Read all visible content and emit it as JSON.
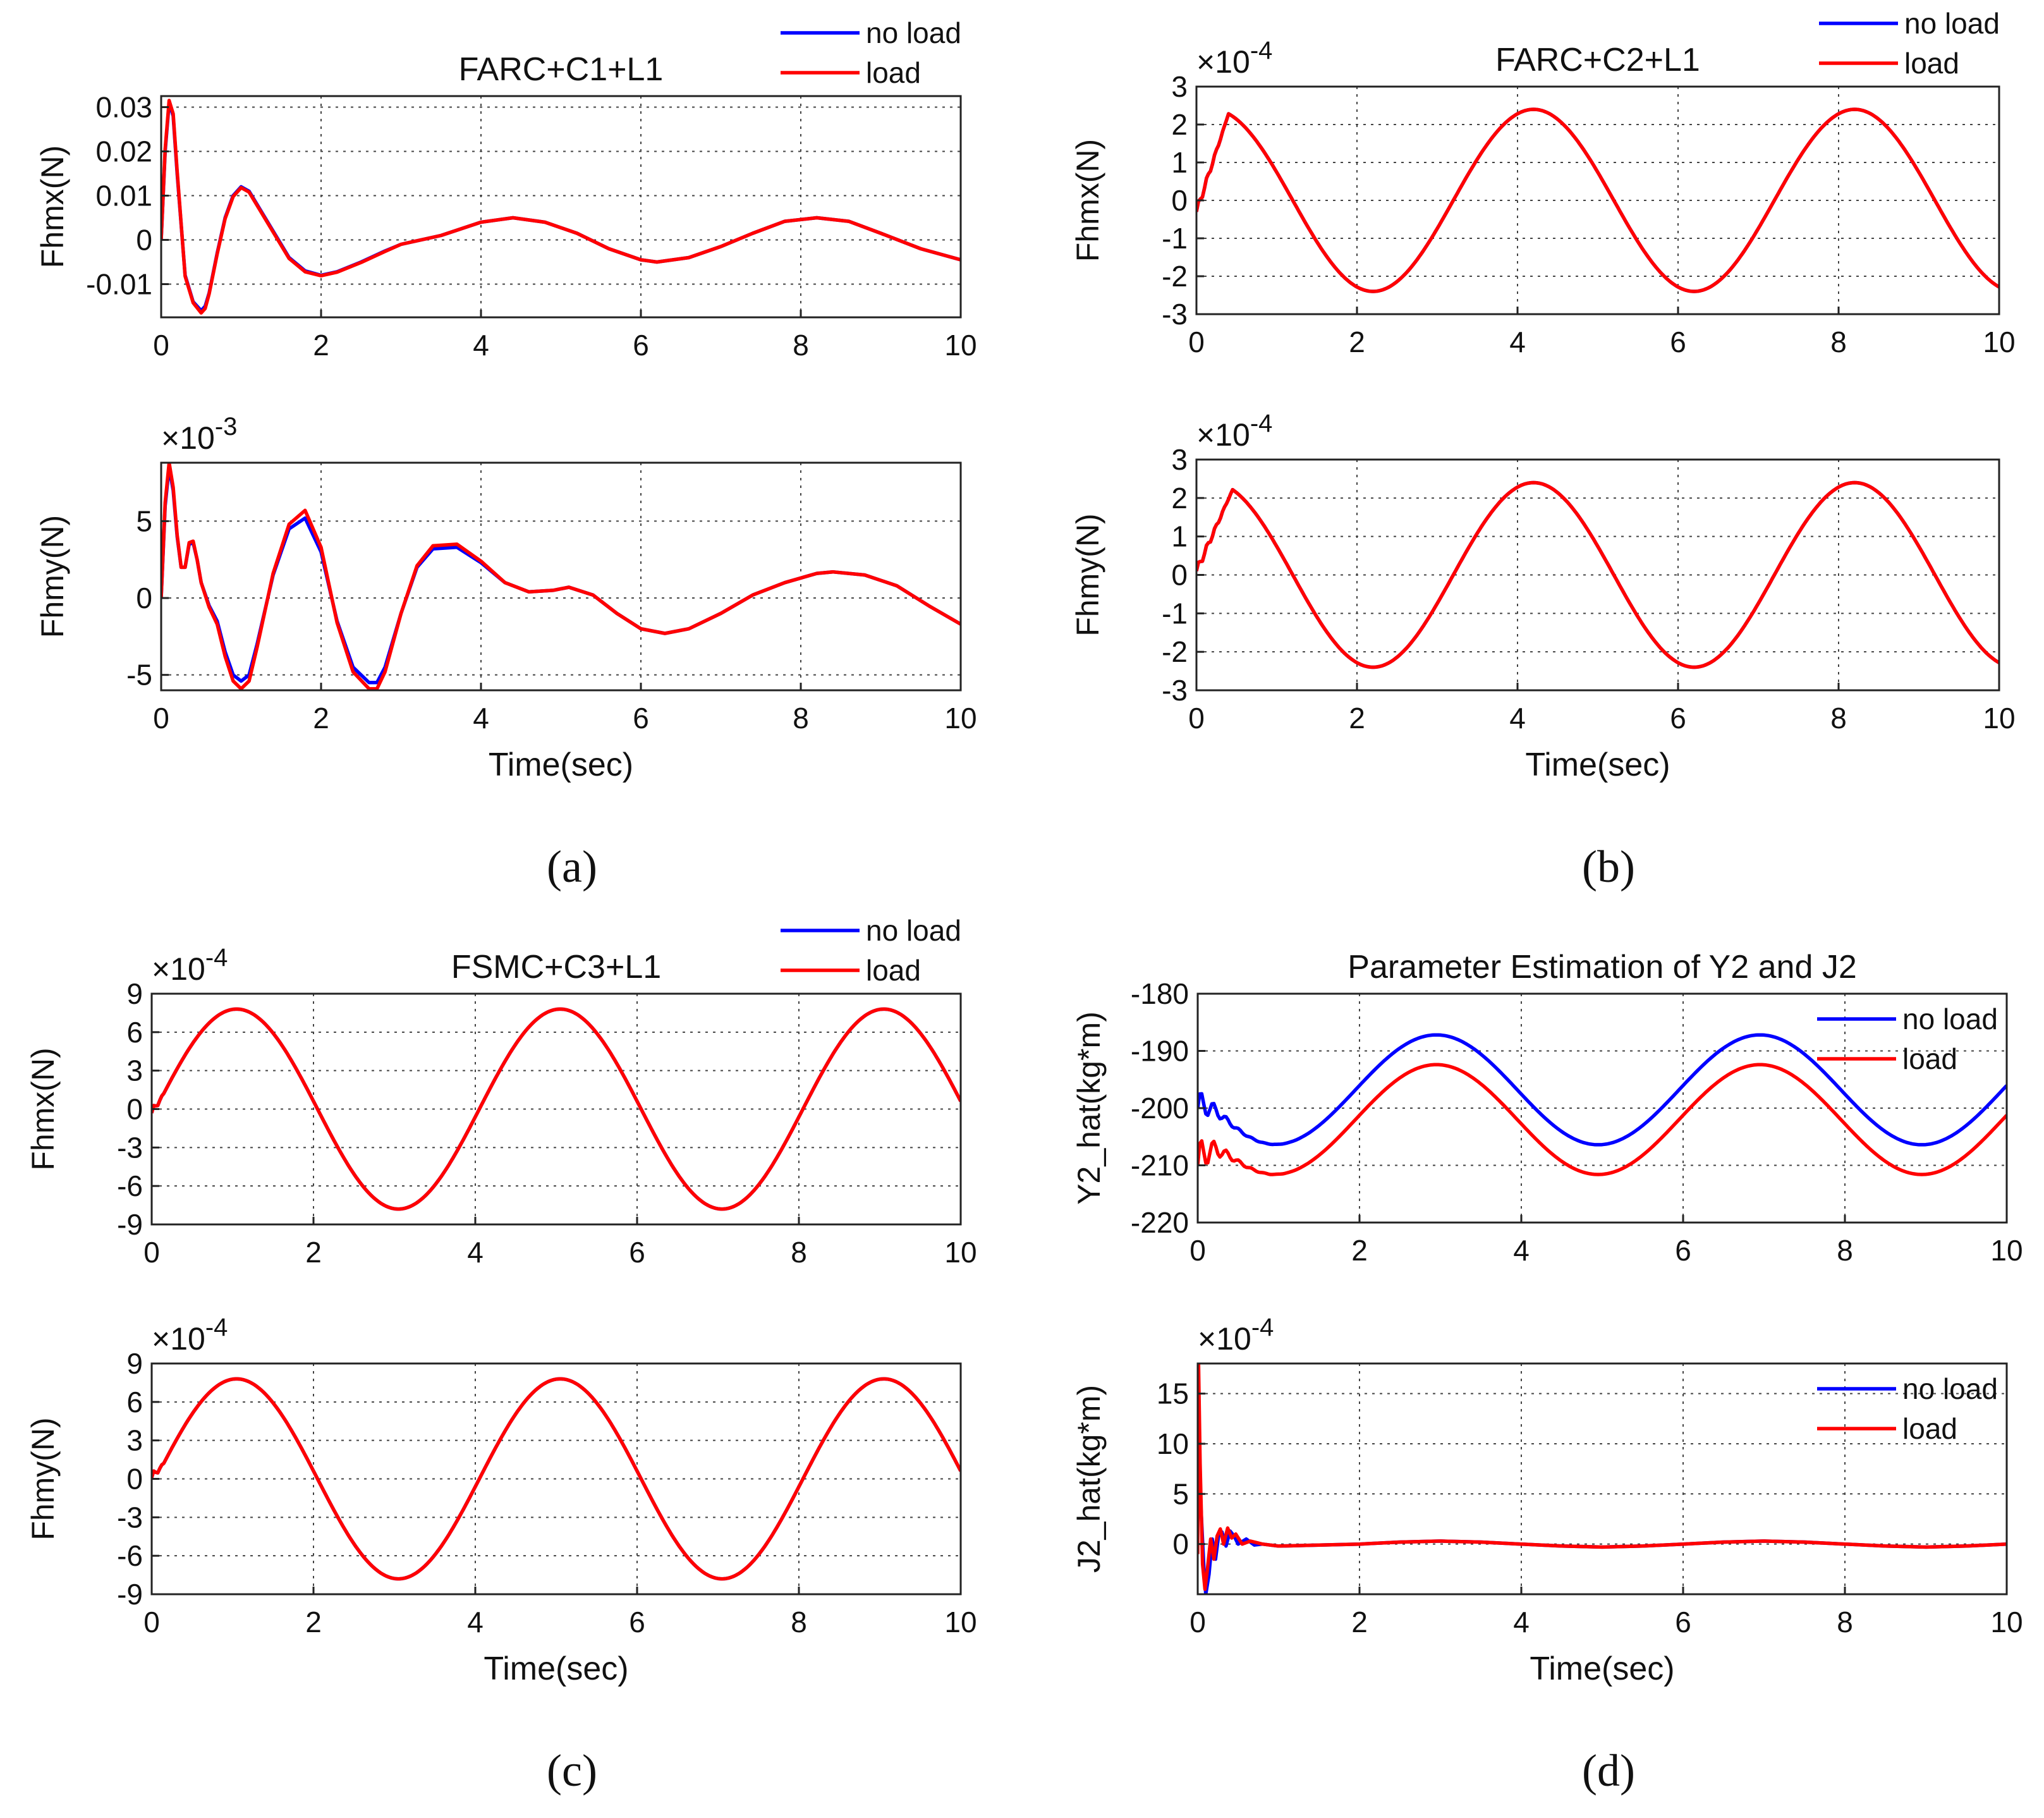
{
  "chart_data": [
    {
      "id": "a1",
      "type": "line",
      "title": "FARC+C1+L1",
      "xlabel": "",
      "ylabel": "Fhmx(N)",
      "xlim": [
        0,
        10
      ],
      "ylim": [
        -0.0175,
        0.0325
      ],
      "xticks": [
        0,
        2,
        4,
        6,
        8,
        10
      ],
      "yticks": [
        -0.01,
        0,
        0.01,
        0.02,
        0.03
      ],
      "ytick_labels": [
        "-0.01",
        "0",
        "0.01",
        "0.02",
        "0.03"
      ],
      "scale_label": "",
      "grid": true,
      "legend": [
        "no load",
        "load"
      ],
      "legend_position": "top-right-outside",
      "series": [
        {
          "name": "no load",
          "color": "#0000ff",
          "x": [
            0,
            0.05,
            0.1,
            0.15,
            0.2,
            0.3,
            0.4,
            0.5,
            0.55,
            0.6,
            0.7,
            0.8,
            0.9,
            1.0,
            1.1,
            1.2,
            1.4,
            1.6,
            1.8,
            2.0,
            2.2,
            2.5,
            2.8,
            3.0,
            3.5,
            4.0,
            4.4,
            4.8,
            5.2,
            5.6,
            6.0,
            6.2,
            6.6,
            7.0,
            7.4,
            7.8,
            8.2,
            8.6,
            9.0,
            9.5,
            10
          ],
          "y": [
            0,
            0.02,
            0.031,
            0.028,
            0.015,
            -0.008,
            -0.014,
            -0.016,
            -0.015,
            -0.012,
            -0.003,
            0.005,
            0.01,
            0.012,
            0.011,
            0.008,
            0.002,
            -0.004,
            -0.007,
            -0.008,
            -0.0072,
            -0.005,
            -0.0025,
            -0.001,
            0.001,
            0.004,
            0.005,
            0.004,
            0.0015,
            -0.002,
            -0.0045,
            -0.005,
            -0.004,
            -0.0015,
            0.0015,
            0.0042,
            0.005,
            0.0042,
            0.0015,
            -0.002,
            -0.0045
          ]
        },
        {
          "name": "load",
          "color": "#ff0000",
          "x": [
            0,
            0.05,
            0.1,
            0.15,
            0.2,
            0.3,
            0.4,
            0.5,
            0.55,
            0.6,
            0.7,
            0.8,
            0.9,
            1.0,
            1.1,
            1.2,
            1.4,
            1.6,
            1.8,
            2.0,
            2.2,
            2.5,
            2.8,
            3.0,
            3.5,
            4.0,
            4.4,
            4.8,
            5.2,
            5.6,
            6.0,
            6.2,
            6.6,
            7.0,
            7.4,
            7.8,
            8.2,
            8.6,
            9.0,
            9.5,
            10
          ],
          "y": [
            0,
            0.0205,
            0.0315,
            0.0285,
            0.0155,
            -0.0082,
            -0.0142,
            -0.0165,
            -0.0155,
            -0.0122,
            -0.0032,
            0.0048,
            0.0098,
            0.0118,
            0.0108,
            0.0078,
            0.0018,
            -0.0042,
            -0.0072,
            -0.0081,
            -0.0073,
            -0.0051,
            -0.0026,
            -0.001,
            0.001,
            0.004,
            0.005,
            0.004,
            0.0015,
            -0.002,
            -0.0045,
            -0.005,
            -0.004,
            -0.0015,
            0.0015,
            0.0042,
            0.005,
            0.0042,
            0.0015,
            -0.002,
            -0.0045
          ]
        }
      ]
    },
    {
      "id": "a2",
      "type": "line",
      "title": "",
      "xlabel": "Time(sec)",
      "ylabel": "Fhmy(N)",
      "xlim": [
        0,
        10
      ],
      "ylim": [
        -6,
        8.8
      ],
      "xticks": [
        0,
        2,
        4,
        6,
        8,
        10
      ],
      "yticks": [
        -5,
        0,
        5
      ],
      "ytick_labels": [
        "-5",
        "0",
        "5"
      ],
      "scale_label": "×10",
      "scale_exponent": "-3",
      "grid": true,
      "legend": [],
      "series": [
        {
          "name": "no load",
          "color": "#0000ff",
          "x": [
            0,
            0.05,
            0.1,
            0.15,
            0.2,
            0.25,
            0.3,
            0.35,
            0.4,
            0.45,
            0.5,
            0.6,
            0.7,
            0.8,
            0.9,
            1.0,
            1.1,
            1.2,
            1.4,
            1.6,
            1.8,
            2.0,
            2.2,
            2.4,
            2.6,
            2.7,
            2.8,
            3.0,
            3.2,
            3.4,
            3.7,
            4.0,
            4.3,
            4.6,
            4.9,
            5.1,
            5.4,
            5.7,
            6.0,
            6.3,
            6.6,
            7.0,
            7.4,
            7.8,
            8.2,
            8.4,
            8.8,
            9.2,
            9.6,
            10
          ],
          "y": [
            0,
            6,
            8.5,
            7,
            4,
            2,
            2,
            3.5,
            3.6,
            2.5,
            1,
            -0.5,
            -1.5,
            -3.5,
            -5,
            -5.4,
            -5,
            -3,
            1.5,
            4.5,
            5.2,
            3,
            -1.5,
            -4.5,
            -5.5,
            -5.5,
            -4.5,
            -1,
            2,
            3.2,
            3.3,
            2.3,
            1,
            0.4,
            0.5,
            0.7,
            0.2,
            -1,
            -2,
            -2.3,
            -2,
            -1,
            0.2,
            1,
            1.6,
            1.7,
            1.5,
            0.8,
            -0.5,
            -1.7
          ]
        },
        {
          "name": "load",
          "color": "#ff0000",
          "x": [
            0,
            0.05,
            0.1,
            0.15,
            0.2,
            0.25,
            0.3,
            0.35,
            0.4,
            0.45,
            0.5,
            0.6,
            0.7,
            0.8,
            0.9,
            1.0,
            1.1,
            1.2,
            1.4,
            1.6,
            1.8,
            2.0,
            2.2,
            2.4,
            2.6,
            2.7,
            2.8,
            3.0,
            3.2,
            3.4,
            3.7,
            4.0,
            4.3,
            4.6,
            4.9,
            5.1,
            5.4,
            5.7,
            6.0,
            6.3,
            6.6,
            7.0,
            7.4,
            7.8,
            8.2,
            8.4,
            8.8,
            9.2,
            9.6,
            10
          ],
          "y": [
            0,
            6.2,
            8.8,
            7.2,
            4.1,
            2,
            2,
            3.6,
            3.7,
            2.5,
            1,
            -0.6,
            -1.7,
            -3.8,
            -5.4,
            -5.9,
            -5.4,
            -3.2,
            1.6,
            4.8,
            5.7,
            3.3,
            -1.6,
            -4.8,
            -5.9,
            -5.9,
            -4.8,
            -1,
            2.1,
            3.4,
            3.5,
            2.4,
            1,
            0.4,
            0.5,
            0.7,
            0.2,
            -1,
            -2,
            -2.3,
            -2,
            -1,
            0.2,
            1,
            1.6,
            1.7,
            1.5,
            0.8,
            -0.5,
            -1.7
          ]
        }
      ]
    },
    {
      "id": "b1",
      "type": "line",
      "title": "FARC+C2+L1",
      "xlabel": "",
      "ylabel": "Fhmx(N)",
      "xlim": [
        0,
        10
      ],
      "ylim": [
        -3,
        3
      ],
      "xticks": [
        0,
        2,
        4,
        6,
        8,
        10
      ],
      "yticks": [
        -3,
        -2,
        -1,
        0,
        1,
        2,
        3
      ],
      "ytick_labels": [
        "-3",
        "-2",
        "-1",
        "0",
        "1",
        "2",
        "3"
      ],
      "scale_label": "×10",
      "scale_exponent": "-4",
      "grid": true,
      "legend": [
        "no load",
        "load"
      ],
      "legend_position": "top-right-outside",
      "series": [
        {
          "name": "no load",
          "color": "#0000ff",
          "fn": "sine",
          "amp": 2.4,
          "period": 4,
          "peak": 4.2,
          "onset": 0.4,
          "start": -0.3
        },
        {
          "name": "load",
          "color": "#ff0000",
          "fn": "sine",
          "amp": 2.4,
          "period": 4,
          "peak": 4.2,
          "onset": 0.4,
          "start": -0.3
        }
      ]
    },
    {
      "id": "b2",
      "type": "line",
      "title": "",
      "xlabel": "Time(sec)",
      "ylabel": "Fhmy(N)",
      "xlim": [
        0,
        10
      ],
      "ylim": [
        -3,
        3
      ],
      "xticks": [
        0,
        2,
        4,
        6,
        8,
        10
      ],
      "yticks": [
        -3,
        -2,
        -1,
        0,
        1,
        2,
        3
      ],
      "ytick_labels": [
        "-3",
        "-2",
        "-1",
        "0",
        "1",
        "2",
        "3"
      ],
      "scale_label": "×10",
      "scale_exponent": "-4",
      "grid": true,
      "legend": [],
      "series": [
        {
          "name": "no load",
          "color": "#0000ff",
          "fn": "sine",
          "amp": 2.4,
          "period": 4,
          "peak": 4.2,
          "onset": 0.45,
          "start": 0.1
        },
        {
          "name": "load",
          "color": "#ff0000",
          "fn": "sine",
          "amp": 2.4,
          "period": 4,
          "peak": 4.2,
          "onset": 0.45,
          "start": 0.1
        }
      ]
    },
    {
      "id": "c1",
      "type": "line",
      "title": "FSMC+C3+L1",
      "xlabel": "",
      "ylabel": "Fhmx(N)",
      "xlim": [
        0,
        10
      ],
      "ylim": [
        -9,
        9
      ],
      "xticks": [
        0,
        2,
        4,
        6,
        8,
        10
      ],
      "yticks": [
        -9,
        -6,
        -3,
        0,
        3,
        6,
        9
      ],
      "ytick_labels": [
        "-9",
        "-6",
        "-3",
        "0",
        "3",
        "6",
        "9"
      ],
      "scale_label": "×10",
      "scale_exponent": "-4",
      "grid": true,
      "legend": [
        "no load",
        "load"
      ],
      "legend_position": "top-right-outside",
      "series": [
        {
          "name": "no load",
          "color": "#0000ff",
          "fn": "sine",
          "amp": 7.8,
          "period": 4,
          "peak": 1.05,
          "onset": 0.15,
          "start": -0.3
        },
        {
          "name": "load",
          "color": "#ff0000",
          "fn": "sine",
          "amp": 7.8,
          "period": 4,
          "peak": 1.05,
          "onset": 0.15,
          "start": -0.3
        }
      ]
    },
    {
      "id": "c2",
      "type": "line",
      "title": "",
      "xlabel": "Time(sec)",
      "ylabel": "Fhmy(N)",
      "xlim": [
        0,
        10
      ],
      "ylim": [
        -9,
        9
      ],
      "xticks": [
        0,
        2,
        4,
        6,
        8,
        10
      ],
      "yticks": [
        -9,
        -6,
        -3,
        0,
        3,
        6,
        9
      ],
      "ytick_labels": [
        "-9",
        "-6",
        "-3",
        "0",
        "3",
        "6",
        "9"
      ],
      "scale_label": "×10",
      "scale_exponent": "-4",
      "grid": true,
      "legend": [],
      "series": [
        {
          "name": "no load",
          "color": "#0000ff",
          "fn": "sine",
          "amp": 7.8,
          "period": 4,
          "peak": 1.05,
          "onset": 0.15,
          "start": 0.1
        },
        {
          "name": "load",
          "color": "#ff0000",
          "fn": "sine",
          "amp": 7.8,
          "period": 4,
          "peak": 1.05,
          "onset": 0.15,
          "start": 0.1
        }
      ]
    },
    {
      "id": "d1",
      "type": "line",
      "title": "Parameter Estimation of Y2 and J2",
      "xlabel": "",
      "ylabel": "Y2_hat(kg*m)",
      "xlim": [
        0,
        10
      ],
      "ylim": [
        -220,
        -180
      ],
      "xticks": [
        0,
        2,
        4,
        6,
        8,
        10
      ],
      "yticks": [
        -220,
        -210,
        -200,
        -190,
        -180
      ],
      "ytick_labels": [
        "-220",
        "-210",
        "-200",
        "-190",
        "-180"
      ],
      "scale_label": "",
      "grid": true,
      "legend": [
        "no load",
        "load"
      ],
      "legend_position": "top-right-inside",
      "series": [
        {
          "name": "no load",
          "color": "#0000ff",
          "fn": "offset_sine",
          "base": -196.8,
          "amp": 9.6,
          "period": 4,
          "peak": 2.95,
          "start": -200,
          "wiggle": 3
        },
        {
          "name": "load",
          "color": "#ff0000",
          "fn": "offset_sine",
          "base": -202,
          "amp": 9.6,
          "period": 4,
          "peak": 2.95,
          "start": -210,
          "wiggle": 4
        }
      ]
    },
    {
      "id": "d2",
      "type": "line",
      "title": "",
      "xlabel": "Time(sec)",
      "ylabel": "J2_hat(kg*m)",
      "xlim": [
        0,
        10
      ],
      "ylim": [
        -5,
        18
      ],
      "xticks": [
        0,
        2,
        4,
        6,
        8,
        10
      ],
      "yticks": [
        0,
        5,
        10,
        15
      ],
      "ytick_labels": [
        "0",
        "5",
        "10",
        "15"
      ],
      "scale_label": "×10",
      "scale_exponent": "-4",
      "grid": true,
      "legend": [
        "no load",
        "load"
      ],
      "legend_position": "top-right-inside",
      "series": [
        {
          "name": "no load",
          "color": "#0000ff",
          "x": [
            0,
            0.02,
            0.05,
            0.08,
            0.1,
            0.14,
            0.18,
            0.22,
            0.26,
            0.3,
            0.35,
            0.4,
            0.45,
            0.5,
            0.6,
            0.7,
            0.8,
            1.0,
            1.5,
            2.0,
            2.5,
            3.0,
            3.5,
            4.0,
            4.5,
            5.0,
            5.5,
            6.0,
            6.5,
            7.0,
            7.5,
            8.0,
            8.5,
            9.0,
            9.5,
            10
          ],
          "y": [
            6,
            7,
            2,
            -3,
            -5,
            -3,
            0.5,
            -1.5,
            1,
            1.2,
            -0.2,
            1.3,
            0.8,
            0,
            0.5,
            -0.1,
            0,
            -0.2,
            -0.1,
            0,
            0.2,
            0.3,
            0.2,
            0,
            -0.2,
            -0.3,
            -0.2,
            0,
            0.2,
            0.3,
            0.2,
            0,
            -0.2,
            -0.3,
            -0.2,
            0
          ]
        },
        {
          "name": "load",
          "color": "#ff0000",
          "x": [
            0,
            0.01,
            0.03,
            0.06,
            0.09,
            0.12,
            0.16,
            0.2,
            0.24,
            0.28,
            0.32,
            0.37,
            0.42,
            0.47,
            0.55,
            0.65,
            0.8,
            1.0,
            1.5,
            2.0,
            2.5,
            3.0,
            3.5,
            4.0,
            4.5,
            5.0,
            5.5,
            6.0,
            6.5,
            7.0,
            7.5,
            8.0,
            8.5,
            9.0,
            9.5,
            10
          ],
          "y": [
            -1,
            18,
            8,
            -2,
            -4.5,
            -2.5,
            0.5,
            -1.5,
            0.8,
            1.5,
            0,
            1.6,
            0.6,
            1,
            0,
            0.3,
            0,
            -0.2,
            -0.1,
            0,
            0.2,
            0.3,
            0.2,
            0,
            -0.2,
            -0.3,
            -0.2,
            0,
            0.2,
            0.3,
            0.2,
            0,
            -0.2,
            -0.3,
            -0.2,
            0
          ]
        }
      ]
    }
  ],
  "captions": [
    "(a)",
    "(b)",
    "(c)",
    "(d)"
  ]
}
